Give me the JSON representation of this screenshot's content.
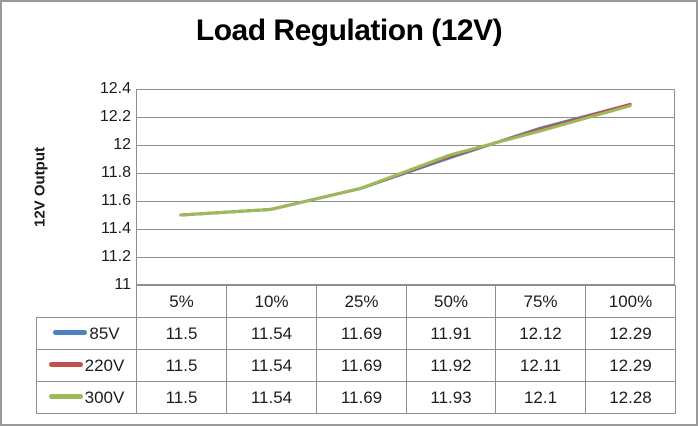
{
  "title": "Load Regulation (12V)",
  "y_axis_title": "12V Output",
  "colors": {
    "series_blue": "#4F81BD",
    "series_red": "#C0504D",
    "series_green": "#9BBB59",
    "gridline": "#8f8f8f",
    "plot_border": "#8f8f8f",
    "table_border": "#8f8f8f",
    "text": "#1c1c1c",
    "title_text": "#000000",
    "background": "#ffffff",
    "outer_border": "#9a9a9a"
  },
  "chart_data": {
    "type": "line",
    "title": "Load Regulation (12V)",
    "xlabel": "",
    "ylabel": "12V Output",
    "categories": [
      "5%",
      "10%",
      "25%",
      "50%",
      "75%",
      "100%"
    ],
    "series": [
      {
        "name": "85V",
        "color": "#4F81BD",
        "values": [
          11.5,
          11.54,
          11.69,
          11.91,
          12.12,
          12.29
        ]
      },
      {
        "name": "220V",
        "color": "#C0504D",
        "values": [
          11.5,
          11.54,
          11.69,
          11.92,
          12.11,
          12.29
        ]
      },
      {
        "name": "300V",
        "color": "#9BBB59",
        "values": [
          11.5,
          11.54,
          11.69,
          11.93,
          12.1,
          12.28
        ]
      }
    ],
    "ylim": [
      11,
      12.4
    ],
    "ytick_step": 0.2,
    "yticks": [
      "12.4",
      "12.2",
      "12",
      "11.8",
      "11.6",
      "11.4",
      "11.2",
      "11"
    ],
    "grid": true,
    "legend_position": "data-table-left",
    "data_table_shown": true
  }
}
